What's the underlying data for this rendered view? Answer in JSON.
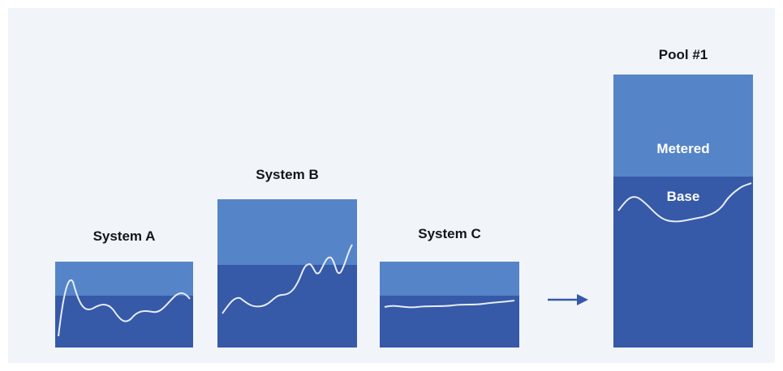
{
  "colors": {
    "background": "#f1f5fa",
    "metered": "#5584c8",
    "base": "#3659a8",
    "usage_line": "#e6ecf7",
    "arrow": "#3659a8"
  },
  "systems": [
    {
      "label": "System A"
    },
    {
      "label": "System B"
    },
    {
      "label": "System C"
    }
  ],
  "pool": {
    "title": "Pool #1",
    "metered_label": "Metered",
    "base_label": "Base"
  },
  "icons": {
    "arrow": "right-arrow-icon"
  }
}
